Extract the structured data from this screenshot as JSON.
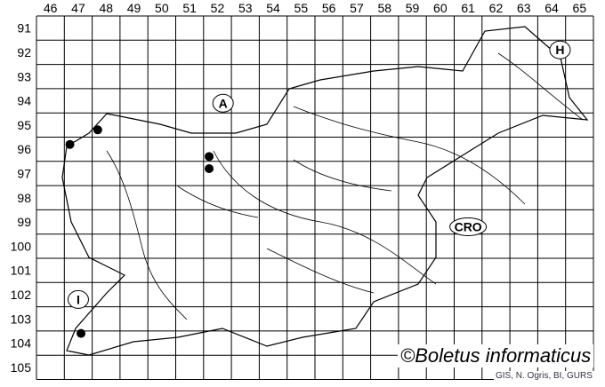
{
  "grid": {
    "columns": [
      "46",
      "47",
      "48",
      "49",
      "50",
      "51",
      "52",
      "53",
      "54",
      "55",
      "56",
      "57",
      "58",
      "59",
      "60",
      "61",
      "62",
      "63",
      "64",
      "65"
    ],
    "rows": [
      "91",
      "92",
      "93",
      "94",
      "95",
      "96",
      "97",
      "98",
      "99",
      "100",
      "101",
      "102",
      "103",
      "104",
      "105"
    ]
  },
  "countries": [
    {
      "label": "A",
      "col": 52.7,
      "row": 94.6
    },
    {
      "label": "H",
      "col": 64.8,
      "row": 92.4
    },
    {
      "label": "CRO",
      "col": 61.5,
      "row": 99.7
    },
    {
      "label": "I",
      "col": 47.5,
      "row": 102.7
    }
  ],
  "records": [
    {
      "col": 47.2,
      "row": 96.3
    },
    {
      "col": 48.2,
      "row": 95.7
    },
    {
      "col": 52.2,
      "row": 96.8
    },
    {
      "col": 52.2,
      "row": 97.3
    },
    {
      "col": 47.6,
      "row": 104.1
    }
  ],
  "colors": {
    "dot": "#000000",
    "grid": "#000000",
    "rivers": "#000000"
  },
  "copyright": "©Boletus informaticus",
  "source": "GIS, N. Ogris, BI, GURS"
}
